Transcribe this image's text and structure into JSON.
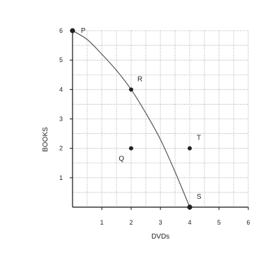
{
  "chart_data": {
    "type": "line",
    "title": "",
    "xlabel": "DVDs",
    "ylabel": "BOOKS",
    "xlim": [
      0,
      6
    ],
    "ylim": [
      0,
      6
    ],
    "x_ticks": [
      1,
      2,
      3,
      4,
      5,
      6
    ],
    "y_ticks": [
      1,
      2,
      3,
      4,
      5,
      6
    ],
    "grid": true,
    "legend": "none",
    "curve": {
      "x": [
        0,
        0.5,
        1,
        1.5,
        2,
        2.5,
        3,
        3.5,
        4
      ],
      "y": [
        6,
        5.7,
        5.2,
        4.65,
        4,
        3.2,
        2.3,
        1.2,
        0
      ]
    },
    "points": [
      {
        "label": "P",
        "x": 0,
        "y": 6
      },
      {
        "label": "R",
        "x": 2,
        "y": 4
      },
      {
        "label": "Q",
        "x": 2,
        "y": 2
      },
      {
        "label": "T",
        "x": 4,
        "y": 2
      },
      {
        "label": "S",
        "x": 4,
        "y": 0
      }
    ],
    "colors": {
      "curve": "#555555",
      "point": "#222222",
      "grid": "#9a9a9a",
      "axis": "#111111"
    }
  }
}
